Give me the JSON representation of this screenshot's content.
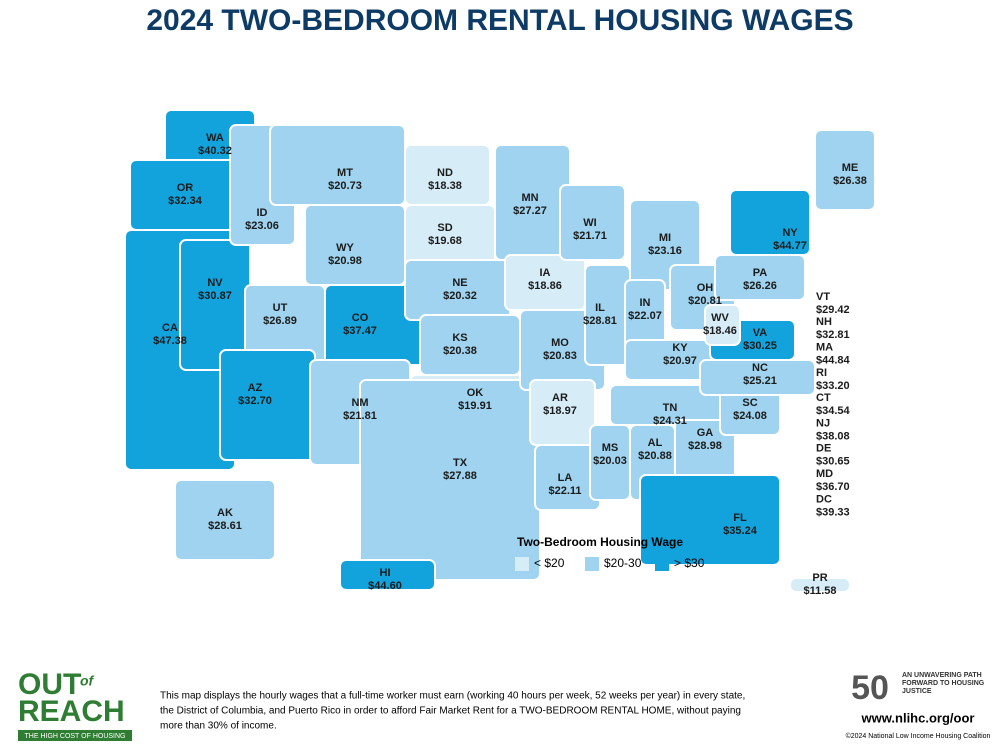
{
  "header": {
    "title": "2024 TWO-BEDROOM RENTAL HOUSING WAGES"
  },
  "legend": {
    "title": "Two-Bedroom Housing Wage",
    "items": [
      {
        "label": "< $20",
        "color": "#d6ecf7"
      },
      {
        "label": "$20-30",
        "color": "#9fd3ef"
      },
      {
        "label": "> $30",
        "color": "#12a3dc"
      }
    ]
  },
  "states": [
    {
      "abbr": "WA",
      "wage": "$40.32",
      "tier": 2
    },
    {
      "abbr": "OR",
      "wage": "$32.34",
      "tier": 2
    },
    {
      "abbr": "CA",
      "wage": "$47.38",
      "tier": 2
    },
    {
      "abbr": "NV",
      "wage": "$30.87",
      "tier": 2
    },
    {
      "abbr": "ID",
      "wage": "$23.06",
      "tier": 1
    },
    {
      "abbr": "MT",
      "wage": "$20.73",
      "tier": 1
    },
    {
      "abbr": "WY",
      "wage": "$20.98",
      "tier": 1
    },
    {
      "abbr": "UT",
      "wage": "$26.89",
      "tier": 1
    },
    {
      "abbr": "CO",
      "wage": "$37.47",
      "tier": 2
    },
    {
      "abbr": "AZ",
      "wage": "$32.70",
      "tier": 2
    },
    {
      "abbr": "NM",
      "wage": "$21.81",
      "tier": 1
    },
    {
      "abbr": "ND",
      "wage": "$18.38",
      "tier": 0
    },
    {
      "abbr": "SD",
      "wage": "$19.68",
      "tier": 0
    },
    {
      "abbr": "NE",
      "wage": "$20.32",
      "tier": 1
    },
    {
      "abbr": "KS",
      "wage": "$20.38",
      "tier": 1
    },
    {
      "abbr": "OK",
      "wage": "$19.91",
      "tier": 0
    },
    {
      "abbr": "TX",
      "wage": "$27.88",
      "tier": 1
    },
    {
      "abbr": "MN",
      "wage": "$27.27",
      "tier": 1
    },
    {
      "abbr": "IA",
      "wage": "$18.86",
      "tier": 0
    },
    {
      "abbr": "MO",
      "wage": "$20.83",
      "tier": 1
    },
    {
      "abbr": "AR",
      "wage": "$18.97",
      "tier": 0
    },
    {
      "abbr": "LA",
      "wage": "$22.11",
      "tier": 1
    },
    {
      "abbr": "WI",
      "wage": "$21.71",
      "tier": 1
    },
    {
      "abbr": "IL",
      "wage": "$28.81",
      "tier": 1
    },
    {
      "abbr": "MI",
      "wage": "$23.16",
      "tier": 1
    },
    {
      "abbr": "IN",
      "wage": "$22.07",
      "tier": 1
    },
    {
      "abbr": "OH",
      "wage": "$20.81",
      "tier": 1
    },
    {
      "abbr": "KY",
      "wage": "$20.97",
      "tier": 1
    },
    {
      "abbr": "TN",
      "wage": "$24.31",
      "tier": 1
    },
    {
      "abbr": "MS",
      "wage": "$20.03",
      "tier": 1
    },
    {
      "abbr": "AL",
      "wage": "$20.88",
      "tier": 1
    },
    {
      "abbr": "GA",
      "wage": "$28.98",
      "tier": 1
    },
    {
      "abbr": "FL",
      "wage": "$35.24",
      "tier": 2
    },
    {
      "abbr": "SC",
      "wage": "$24.08",
      "tier": 1
    },
    {
      "abbr": "NC",
      "wage": "$25.21",
      "tier": 1
    },
    {
      "abbr": "VA",
      "wage": "$30.25",
      "tier": 2
    },
    {
      "abbr": "WV",
      "wage": "$18.46",
      "tier": 0
    },
    {
      "abbr": "PA",
      "wage": "$26.26",
      "tier": 1
    },
    {
      "abbr": "NY",
      "wage": "$44.77",
      "tier": 2
    },
    {
      "abbr": "ME",
      "wage": "$26.38",
      "tier": 1
    },
    {
      "abbr": "AK",
      "wage": "$28.61",
      "tier": 1
    },
    {
      "abbr": "HI",
      "wage": "$44.60",
      "tier": 2
    },
    {
      "abbr": "PR",
      "wage": "$11.58",
      "tier": 0
    }
  ],
  "callouts": [
    {
      "abbr": "VT",
      "wage": "$29.42",
      "tier": 1
    },
    {
      "abbr": "NH",
      "wage": "$32.81",
      "tier": 2
    },
    {
      "abbr": "MA",
      "wage": "$44.84",
      "tier": 2
    },
    {
      "abbr": "RI",
      "wage": "$33.20",
      "tier": 2
    },
    {
      "abbr": "CT",
      "wage": "$34.54",
      "tier": 2
    },
    {
      "abbr": "NJ",
      "wage": "$38.08",
      "tier": 2
    },
    {
      "abbr": "DE",
      "wage": "$30.65",
      "tier": 2
    },
    {
      "abbr": "MD",
      "wage": "$36.70",
      "tier": 2
    },
    {
      "abbr": "DC",
      "wage": "$39.33",
      "tier": 2
    }
  ],
  "footer": {
    "logo": {
      "out": "OUT",
      "of": "of",
      "reach": "REACH",
      "tagline": "THE HIGH COST OF HOUSING"
    },
    "lines": [
      "This map displays the hourly wages that a full-time worker must earn (working 40 hours per week, 52 weeks per year) in every state,",
      "the District of Columbia, and Puerto Rico in order to afford Fair Market Rent for a TWO-BEDROOM RENTAL HOME, without paying",
      "more than 30% of income."
    ],
    "badge": "50",
    "motto": "AN UNWAVERING PATH FORWARD TO HOUSING JUSTICE",
    "url": "www.nlihc.org/oor",
    "copyright": "©2024 National Low Income Housing Coalition"
  }
}
